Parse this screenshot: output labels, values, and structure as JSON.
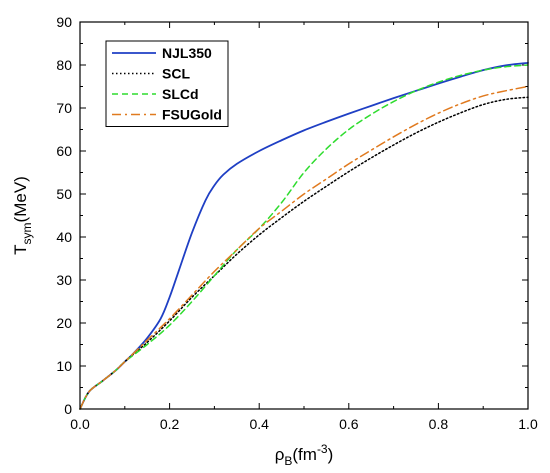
{
  "chart_data": {
    "type": "line",
    "title": "",
    "xlabel": {
      "base": "ρ",
      "sub": "B",
      "rest": "(fm",
      "sup": "-3",
      "end": ")"
    },
    "ylabel": {
      "base": "T",
      "sub": "sym",
      "rest": "(MeV)"
    },
    "xlim": [
      0,
      1
    ],
    "ylim": [
      0,
      90
    ],
    "x_ticks": [
      "0.0",
      "0.2",
      "0.4",
      "0.6",
      "0.8",
      "1.0"
    ],
    "y_ticks": [
      "0",
      "10",
      "20",
      "30",
      "40",
      "50",
      "60",
      "70",
      "80",
      "90"
    ],
    "grid": false,
    "legend_position": "top-left",
    "series": [
      {
        "name": "NJL350",
        "color": "#1f3fc4",
        "dash": "solid",
        "x": [
          0,
          0.02,
          0.05,
          0.08,
          0.1,
          0.12,
          0.15,
          0.18,
          0.2,
          0.22,
          0.25,
          0.28,
          0.3,
          0.32,
          0.35,
          0.4,
          0.45,
          0.5,
          0.55,
          0.6,
          0.65,
          0.7,
          0.75,
          0.8,
          0.85,
          0.9,
          0.95,
          1.0
        ],
        "values": [
          0,
          4,
          6.5,
          9,
          11,
          13,
          16.5,
          21,
          26,
          32,
          41,
          48.5,
          52,
          54.5,
          57,
          60,
          62.5,
          64.8,
          66.8,
          68.7,
          70.5,
          72.3,
          74,
          75.7,
          77.3,
          78.8,
          79.9,
          80.5
        ]
      },
      {
        "name": "SCL",
        "color": "#000000",
        "dash": "dotted",
        "x": [
          0,
          0.02,
          0.05,
          0.08,
          0.1,
          0.15,
          0.2,
          0.25,
          0.3,
          0.35,
          0.4,
          0.45,
          0.5,
          0.55,
          0.6,
          0.65,
          0.7,
          0.75,
          0.8,
          0.85,
          0.9,
          0.95,
          1.0
        ],
        "values": [
          0,
          4,
          6.5,
          9,
          11,
          15.5,
          20.5,
          26,
          31,
          36,
          40.5,
          44.5,
          48.3,
          51.8,
          55.2,
          58.4,
          61.4,
          64.2,
          66.7,
          68.9,
          70.8,
          72,
          72.5
        ]
      },
      {
        "name": "SLCd",
        "color": "#2edc2e",
        "dash": "dashed",
        "x": [
          0,
          0.02,
          0.05,
          0.08,
          0.1,
          0.15,
          0.2,
          0.25,
          0.3,
          0.35,
          0.4,
          0.45,
          0.5,
          0.55,
          0.6,
          0.65,
          0.7,
          0.75,
          0.8,
          0.85,
          0.9,
          0.95,
          1.0
        ],
        "values": [
          0,
          4,
          6.5,
          9,
          11,
          15,
          19.5,
          25,
          31,
          37,
          42,
          48,
          55,
          60.5,
          65,
          68.5,
          71.5,
          74,
          76,
          77.6,
          78.8,
          79.6,
          80
        ]
      },
      {
        "name": "FSUGold",
        "color": "#e07a1f",
        "dash": "dashdot",
        "x": [
          0,
          0.02,
          0.05,
          0.08,
          0.1,
          0.15,
          0.2,
          0.25,
          0.3,
          0.35,
          0.4,
          0.45,
          0.5,
          0.55,
          0.6,
          0.65,
          0.7,
          0.75,
          0.8,
          0.85,
          0.9,
          0.95,
          1.0
        ],
        "values": [
          0,
          4,
          6.5,
          9,
          11,
          16,
          21,
          26.5,
          32,
          37,
          42,
          46,
          50,
          53.5,
          57,
          60.2,
          63.3,
          66.2,
          68.8,
          71,
          72.8,
          74,
          75
        ]
      }
    ]
  }
}
